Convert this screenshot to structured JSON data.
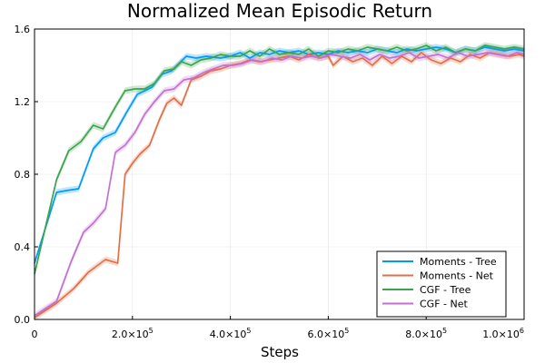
{
  "chart_data": {
    "type": "line",
    "title": "Normalized Mean Episodic Return",
    "xlabel": "Steps",
    "ylabel": "",
    "xlim": [
      0,
      1000000
    ],
    "ylim": [
      0,
      1.6
    ],
    "grid": true,
    "legend_position": "bottom-right",
    "x_ticks": [
      {
        "value": 0,
        "mantissa": "0",
        "exponent": ""
      },
      {
        "value": 200000,
        "mantissa": "2.0×10",
        "exponent": "5"
      },
      {
        "value": 400000,
        "mantissa": "4.0×10",
        "exponent": "5"
      },
      {
        "value": 600000,
        "mantissa": "6.0×10",
        "exponent": "5"
      },
      {
        "value": 800000,
        "mantissa": "8.0×10",
        "exponent": "5"
      },
      {
        "value": 1000000,
        "mantissa": "1.0×10",
        "exponent": "6"
      }
    ],
    "y_ticks": [
      {
        "value": 0,
        "label": "0.0"
      },
      {
        "value": 0.4,
        "label": "0.4"
      },
      {
        "value": 0.8,
        "label": "0.8"
      },
      {
        "value": 1.2,
        "label": "1.2"
      },
      {
        "value": 1.6,
        "label": "1.6"
      }
    ],
    "series": [
      {
        "name": "Moments - Tree",
        "color": "#009AFA",
        "points": [
          [
            0,
            0.31
          ],
          [
            45000,
            0.7
          ],
          [
            65000,
            0.71
          ],
          [
            90000,
            0.72
          ],
          [
            120000,
            0.94
          ],
          [
            140000,
            1.0
          ],
          [
            165000,
            1.03
          ],
          [
            190000,
            1.15
          ],
          [
            210000,
            1.24
          ],
          [
            240000,
            1.28
          ],
          [
            260000,
            1.35
          ],
          [
            280000,
            1.37
          ],
          [
            295000,
            1.41
          ],
          [
            310000,
            1.45
          ],
          [
            330000,
            1.44
          ],
          [
            350000,
            1.45
          ],
          [
            380000,
            1.44
          ],
          [
            400000,
            1.45
          ],
          [
            420000,
            1.47
          ],
          [
            440000,
            1.44
          ],
          [
            460000,
            1.47
          ],
          [
            480000,
            1.46
          ],
          [
            500000,
            1.48
          ],
          [
            520000,
            1.47
          ],
          [
            540000,
            1.48
          ],
          [
            560000,
            1.46
          ],
          [
            580000,
            1.47
          ],
          [
            600000,
            1.46
          ],
          [
            620000,
            1.48
          ],
          [
            640000,
            1.47
          ],
          [
            660000,
            1.48
          ],
          [
            680000,
            1.47
          ],
          [
            700000,
            1.49
          ],
          [
            720000,
            1.48
          ],
          [
            740000,
            1.47
          ],
          [
            760000,
            1.49
          ],
          [
            780000,
            1.48
          ],
          [
            800000,
            1.49
          ],
          [
            820000,
            1.5
          ],
          [
            840000,
            1.49
          ],
          [
            860000,
            1.47
          ],
          [
            880000,
            1.49
          ],
          [
            900000,
            1.48
          ],
          [
            920000,
            1.5
          ],
          [
            940000,
            1.49
          ],
          [
            960000,
            1.48
          ],
          [
            980000,
            1.49
          ],
          [
            1000000,
            1.48
          ]
        ]
      },
      {
        "name": "Moments - Net",
        "color": "#E26F46",
        "points": [
          [
            0,
            0.01
          ],
          [
            45000,
            0.09
          ],
          [
            80000,
            0.17
          ],
          [
            110000,
            0.26
          ],
          [
            145000,
            0.33
          ],
          [
            170000,
            0.31
          ],
          [
            185000,
            0.8
          ],
          [
            200000,
            0.86
          ],
          [
            215000,
            0.91
          ],
          [
            235000,
            0.96
          ],
          [
            255000,
            1.1
          ],
          [
            270000,
            1.19
          ],
          [
            285000,
            1.22
          ],
          [
            300000,
            1.18
          ],
          [
            320000,
            1.32
          ],
          [
            340000,
            1.34
          ],
          [
            360000,
            1.37
          ],
          [
            380000,
            1.38
          ],
          [
            400000,
            1.4
          ],
          [
            420000,
            1.41
          ],
          [
            440000,
            1.43
          ],
          [
            460000,
            1.42
          ],
          [
            480000,
            1.43
          ],
          [
            500000,
            1.44
          ],
          [
            520000,
            1.45
          ],
          [
            540000,
            1.43
          ],
          [
            560000,
            1.46
          ],
          [
            580000,
            1.44
          ],
          [
            600000,
            1.45
          ],
          [
            610000,
            1.4
          ],
          [
            630000,
            1.45
          ],
          [
            650000,
            1.42
          ],
          [
            670000,
            1.44
          ],
          [
            690000,
            1.4
          ],
          [
            710000,
            1.45
          ],
          [
            730000,
            1.41
          ],
          [
            750000,
            1.45
          ],
          [
            770000,
            1.42
          ],
          [
            790000,
            1.47
          ],
          [
            810000,
            1.43
          ],
          [
            830000,
            1.41
          ],
          [
            850000,
            1.44
          ],
          [
            870000,
            1.42
          ],
          [
            890000,
            1.46
          ],
          [
            910000,
            1.44
          ],
          [
            930000,
            1.47
          ],
          [
            950000,
            1.46
          ],
          [
            970000,
            1.45
          ],
          [
            990000,
            1.46
          ],
          [
            1000000,
            1.45
          ]
        ]
      },
      {
        "name": "CGF - Tree",
        "color": "#3DA44D",
        "points": [
          [
            0,
            0.25
          ],
          [
            45000,
            0.77
          ],
          [
            70000,
            0.93
          ],
          [
            95000,
            0.98
          ],
          [
            120000,
            1.07
          ],
          [
            140000,
            1.05
          ],
          [
            165000,
            1.17
          ],
          [
            185000,
            1.26
          ],
          [
            205000,
            1.27
          ],
          [
            225000,
            1.27
          ],
          [
            245000,
            1.3
          ],
          [
            265000,
            1.37
          ],
          [
            285000,
            1.38
          ],
          [
            300000,
            1.42
          ],
          [
            320000,
            1.4
          ],
          [
            340000,
            1.43
          ],
          [
            360000,
            1.44
          ],
          [
            380000,
            1.46
          ],
          [
            400000,
            1.45
          ],
          [
            420000,
            1.45
          ],
          [
            440000,
            1.48
          ],
          [
            460000,
            1.45
          ],
          [
            480000,
            1.49
          ],
          [
            500000,
            1.46
          ],
          [
            520000,
            1.47
          ],
          [
            540000,
            1.46
          ],
          [
            560000,
            1.49
          ],
          [
            580000,
            1.45
          ],
          [
            600000,
            1.48
          ],
          [
            620000,
            1.47
          ],
          [
            640000,
            1.49
          ],
          [
            660000,
            1.48
          ],
          [
            680000,
            1.5
          ],
          [
            700000,
            1.49
          ],
          [
            720000,
            1.48
          ],
          [
            740000,
            1.5
          ],
          [
            760000,
            1.48
          ],
          [
            780000,
            1.49
          ],
          [
            800000,
            1.51
          ],
          [
            820000,
            1.48
          ],
          [
            840000,
            1.5
          ],
          [
            860000,
            1.47
          ],
          [
            880000,
            1.49
          ],
          [
            900000,
            1.48
          ],
          [
            920000,
            1.51
          ],
          [
            940000,
            1.5
          ],
          [
            960000,
            1.49
          ],
          [
            980000,
            1.5
          ],
          [
            1000000,
            1.49
          ]
        ]
      },
      {
        "name": "CGF - Net",
        "color": "#C271D2",
        "points": [
          [
            0,
            0.02
          ],
          [
            45000,
            0.1
          ],
          [
            75000,
            0.32
          ],
          [
            100000,
            0.48
          ],
          [
            120000,
            0.53
          ],
          [
            145000,
            0.61
          ],
          [
            165000,
            0.92
          ],
          [
            185000,
            0.96
          ],
          [
            205000,
            1.03
          ],
          [
            225000,
            1.13
          ],
          [
            245000,
            1.2
          ],
          [
            265000,
            1.26
          ],
          [
            285000,
            1.27
          ],
          [
            305000,
            1.32
          ],
          [
            325000,
            1.33
          ],
          [
            345000,
            1.36
          ],
          [
            365000,
            1.38
          ],
          [
            385000,
            1.4
          ],
          [
            405000,
            1.4
          ],
          [
            425000,
            1.41
          ],
          [
            445000,
            1.43
          ],
          [
            465000,
            1.42
          ],
          [
            485000,
            1.44
          ],
          [
            505000,
            1.43
          ],
          [
            525000,
            1.45
          ],
          [
            545000,
            1.44
          ],
          [
            565000,
            1.45
          ],
          [
            585000,
            1.44
          ],
          [
            605000,
            1.46
          ],
          [
            625000,
            1.45
          ],
          [
            645000,
            1.44
          ],
          [
            665000,
            1.46
          ],
          [
            685000,
            1.43
          ],
          [
            705000,
            1.46
          ],
          [
            725000,
            1.44
          ],
          [
            745000,
            1.45
          ],
          [
            765000,
            1.47
          ],
          [
            785000,
            1.44
          ],
          [
            805000,
            1.45
          ],
          [
            825000,
            1.46
          ],
          [
            845000,
            1.44
          ],
          [
            865000,
            1.47
          ],
          [
            885000,
            1.45
          ],
          [
            905000,
            1.46
          ],
          [
            925000,
            1.47
          ],
          [
            945000,
            1.46
          ],
          [
            965000,
            1.45
          ],
          [
            985000,
            1.47
          ],
          [
            1000000,
            1.46
          ]
        ]
      }
    ]
  }
}
